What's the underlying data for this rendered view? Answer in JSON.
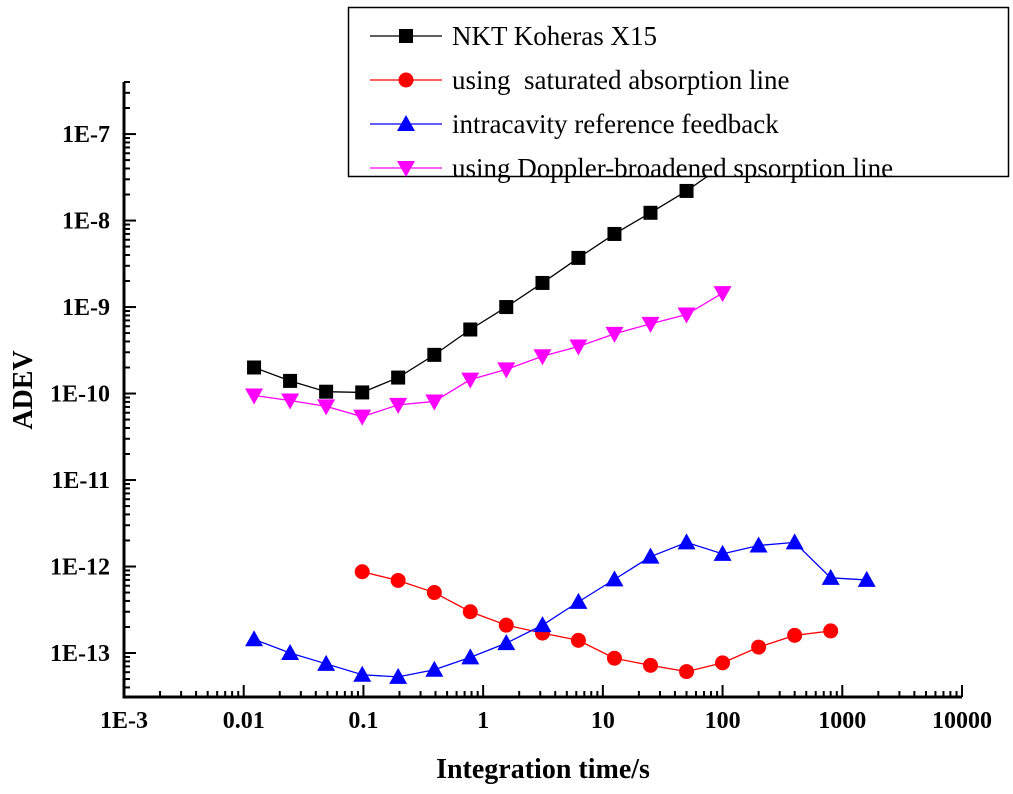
{
  "chart_data": {
    "type": "line",
    "title": "",
    "xlabel": "Integration time/s",
    "ylabel": "ADEV",
    "xscale": "log",
    "yscale": "log",
    "xlim": [
      0.001,
      10000
    ],
    "ylim": [
      3.1e-14,
      4e-07
    ],
    "grid": false,
    "legend_position": "top-right",
    "x_ticks": [
      {
        "value": 0.001,
        "label": "1E-3"
      },
      {
        "value": 0.01,
        "label": "0.01"
      },
      {
        "value": 0.1,
        "label": "0.1"
      },
      {
        "value": 1,
        "label": "1"
      },
      {
        "value": 10,
        "label": "10"
      },
      {
        "value": 100,
        "label": "100"
      },
      {
        "value": 1000,
        "label": "1000"
      },
      {
        "value": 10000,
        "label": "10000"
      }
    ],
    "y_ticks": [
      {
        "value": 1e-07,
        "label": "1E-7"
      },
      {
        "value": 1e-08,
        "label": "1E-8"
      },
      {
        "value": 1e-09,
        "label": "1E-9"
      },
      {
        "value": 1e-10,
        "label": "1E-10"
      },
      {
        "value": 1e-11,
        "label": "1E-11"
      },
      {
        "value": 1e-12,
        "label": "1E-12"
      },
      {
        "value": 1e-13,
        "label": "1E-13"
      }
    ],
    "series": [
      {
        "name": "NKT Koheras X15",
        "color": "#000000",
        "marker": "square",
        "x": [
          0.0122,
          0.0244,
          0.0488,
          0.0977,
          0.195,
          0.391,
          0.781,
          1.56,
          3.13,
          6.25,
          12.5,
          25,
          50,
          100
        ],
        "y": [
          2e-10,
          1.4e-10,
          1.05e-10,
          1.03e-10,
          1.53e-10,
          2.8e-10,
          5.5e-10,
          1e-09,
          1.9e-09,
          3.7e-09,
          7e-09,
          1.23e-08,
          2.2e-08,
          4.3e-08
        ]
      },
      {
        "name": "using  saturated absorption line",
        "color": "#ff0000",
        "marker": "circle",
        "x": [
          0.0977,
          0.195,
          0.391,
          0.781,
          1.56,
          3.13,
          6.25,
          12.5,
          25,
          50,
          100,
          200,
          400,
          800
        ],
        "y": [
          8.7e-13,
          6.9e-13,
          5e-13,
          3e-13,
          2.1e-13,
          1.7e-13,
          1.4e-13,
          8.7e-14,
          7.2e-14,
          6.1e-14,
          7.7e-14,
          1.17e-13,
          1.6e-13,
          1.8e-13
        ]
      },
      {
        "name": "intracavity reference feedback",
        "color": "#0000ff",
        "marker": "triangle-up",
        "x": [
          0.0122,
          0.0244,
          0.0488,
          0.0977,
          0.195,
          0.391,
          0.781,
          1.56,
          3.13,
          6.25,
          12.5,
          25,
          50,
          100,
          200,
          400,
          800,
          1600
        ],
        "y": [
          1.44e-13,
          1e-13,
          7.5e-14,
          5.6e-14,
          5.3e-14,
          6.4e-14,
          8.9e-14,
          1.3e-13,
          2.1e-13,
          3.9e-13,
          7.1e-13,
          1.3e-12,
          1.9e-12,
          1.4e-12,
          1.75e-12,
          1.9e-12,
          7.4e-13,
          7e-13
        ]
      },
      {
        "name": "using Doppler-broadened spsorption line",
        "color": "#ff00ff",
        "marker": "triangle-down",
        "x": [
          0.0122,
          0.0244,
          0.0488,
          0.0977,
          0.195,
          0.391,
          0.781,
          1.56,
          3.13,
          6.25,
          12.5,
          25,
          50,
          100
        ],
        "y": [
          9.5e-11,
          8.3e-11,
          7.1e-11,
          5.4e-11,
          7.4e-11,
          8.1e-11,
          1.45e-10,
          1.9e-10,
          2.7e-10,
          3.5e-10,
          4.9e-10,
          6.4e-10,
          8.2e-10,
          1.45e-09
        ]
      }
    ]
  }
}
